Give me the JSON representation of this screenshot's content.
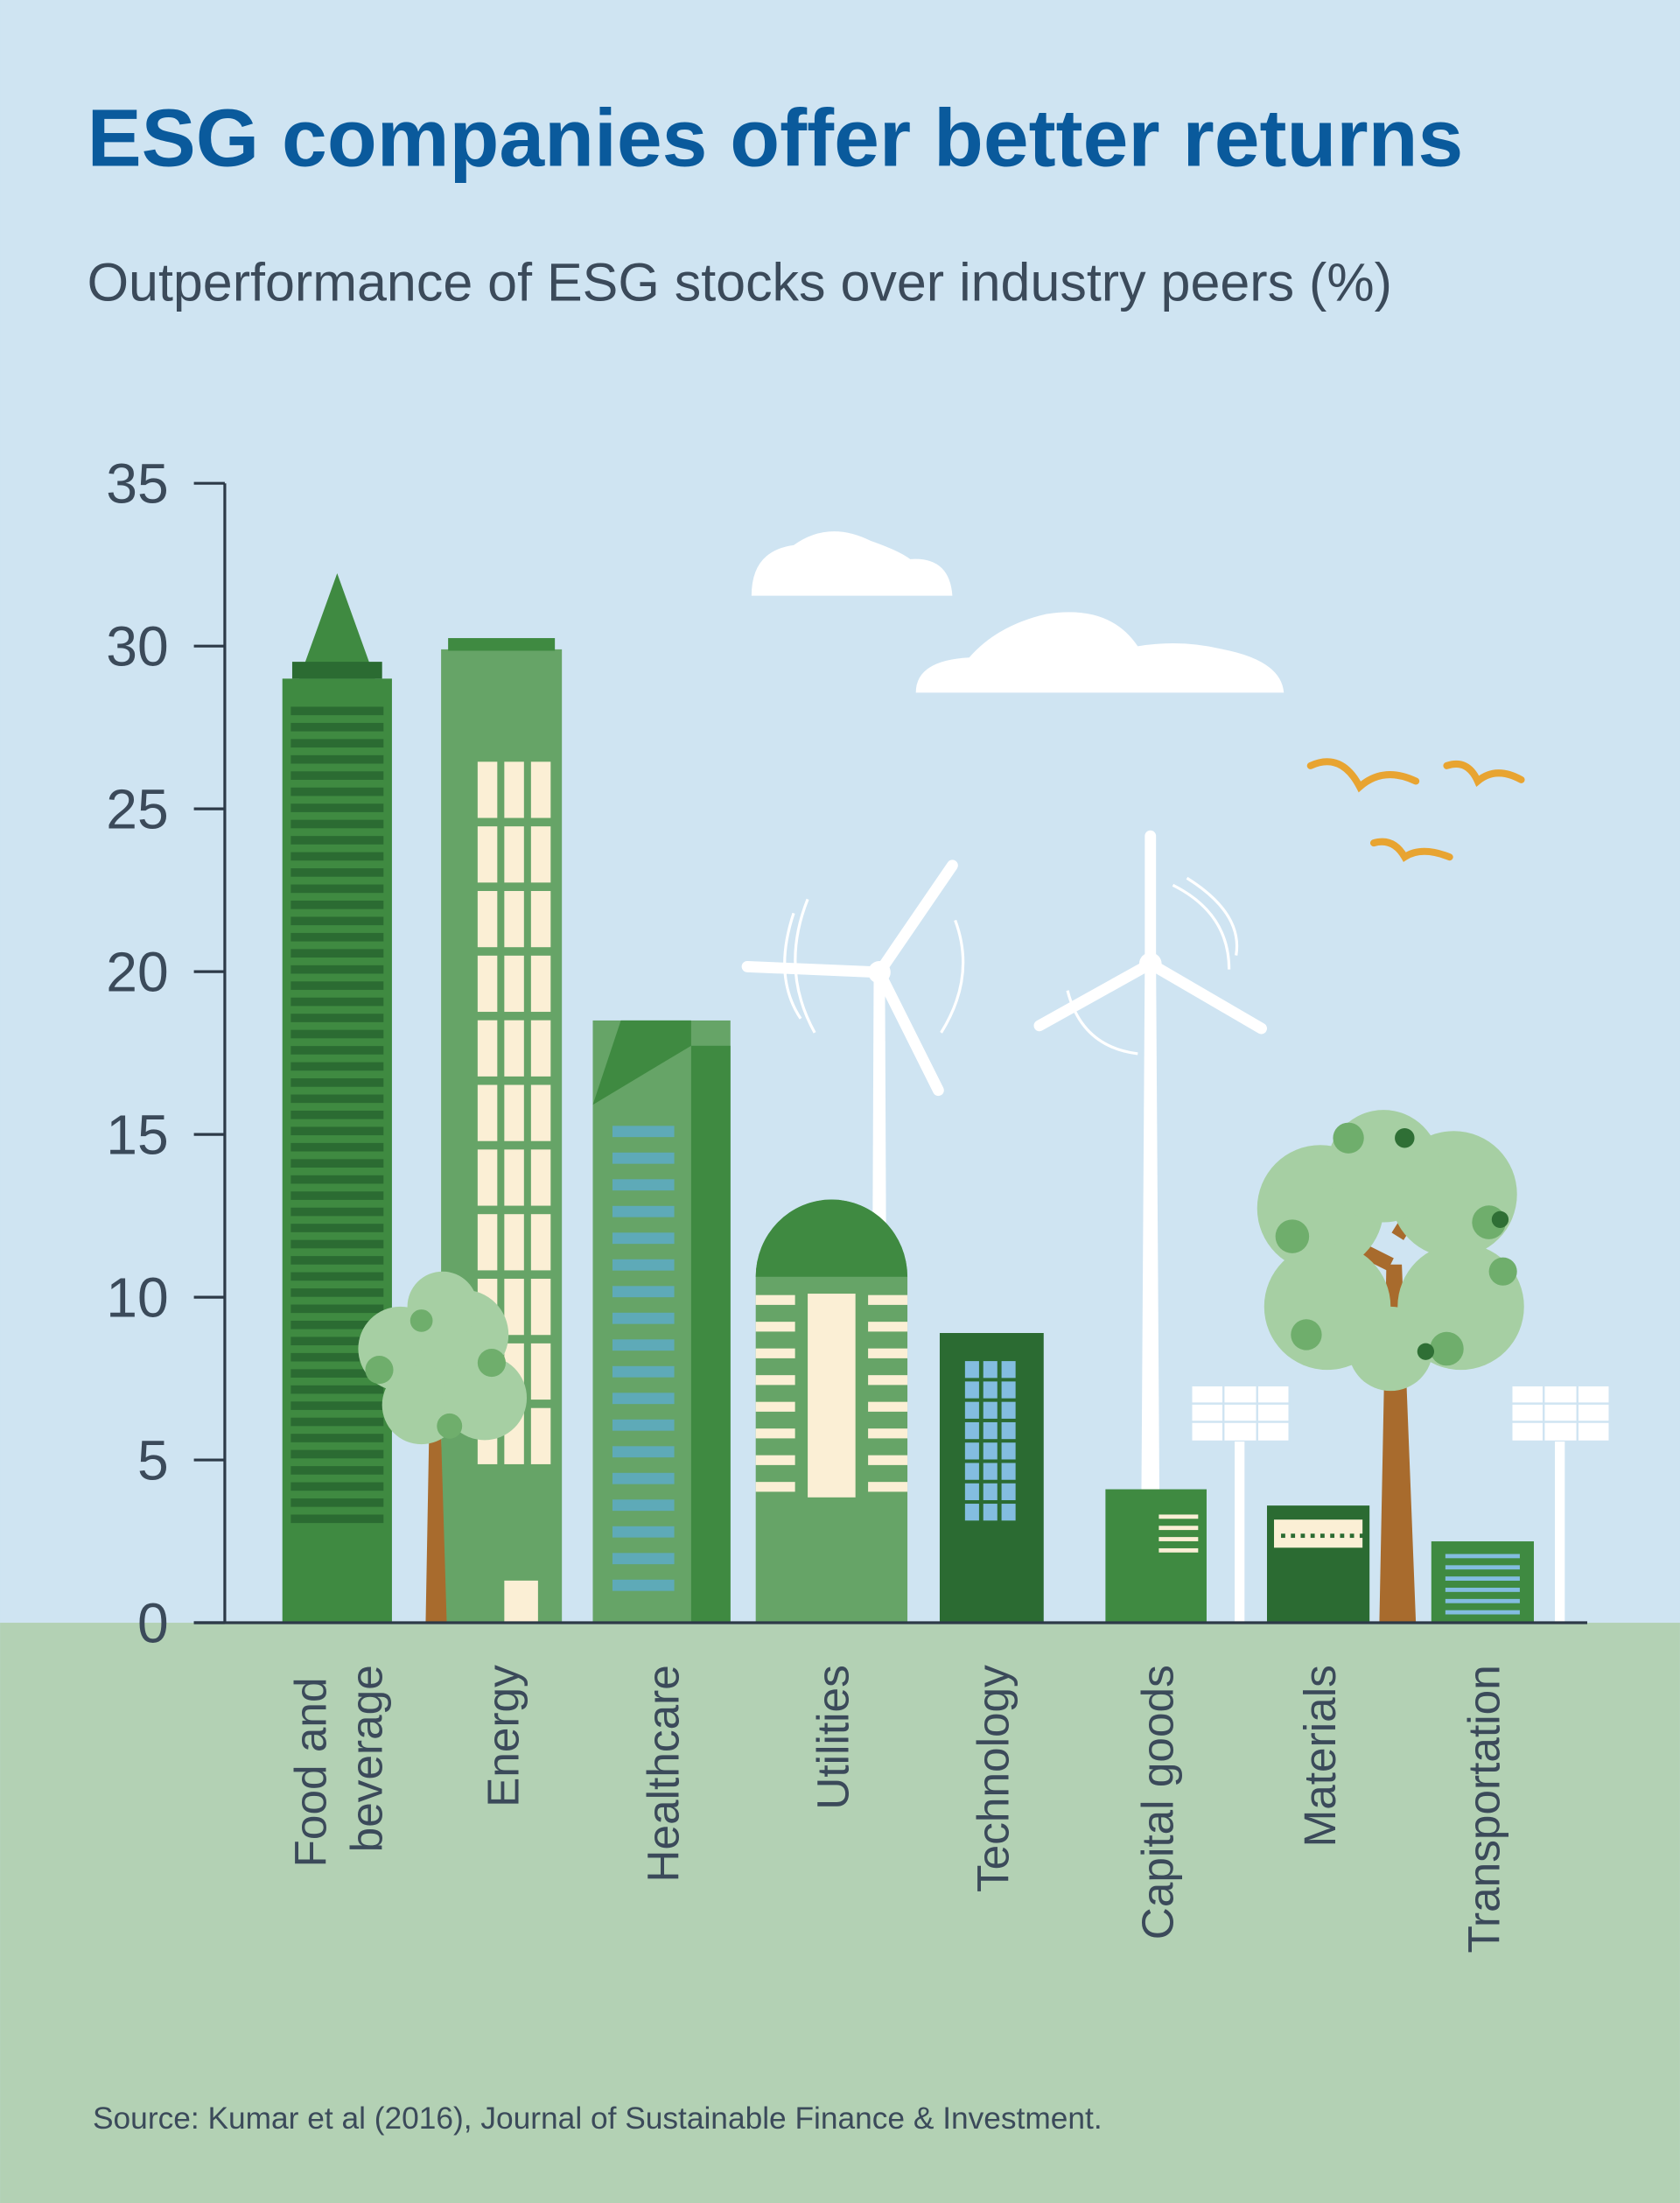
{
  "chart_data": {
    "type": "bar",
    "title": "ESG companies offer better returns",
    "subtitle": "Outperformance of ESG stocks over industry peers (%)",
    "categories": [
      "Food and beverage",
      "Energy",
      "Healthcare",
      "Utilities",
      "Technology",
      "Capital goods",
      "Materials",
      "Transportation"
    ],
    "values": [
      29,
      29.9,
      18.5,
      13,
      8.9,
      4.1,
      3.6,
      2.5
    ],
    "colors": [
      "#3f8a41",
      "#66a467",
      "#66a467",
      "#66a467",
      "#2b6b32",
      "#3f8a41",
      "#2b6b32",
      "#3f8a41"
    ],
    "ylim": [
      0,
      35
    ],
    "yticks": [
      0,
      5,
      10,
      15,
      20,
      25,
      30,
      35
    ],
    "source": "Source: Kumar et al (2016), Journal of Sustainable Finance & Investment."
  }
}
